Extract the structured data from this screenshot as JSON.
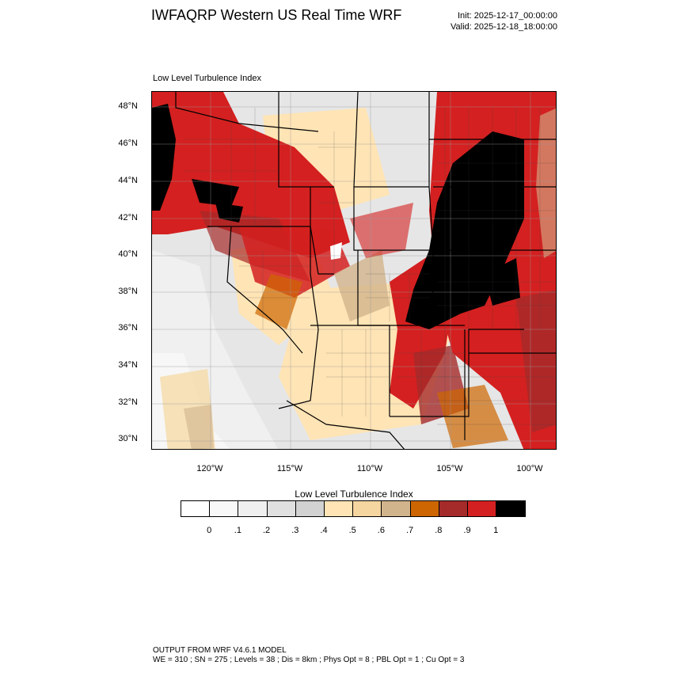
{
  "header": {
    "title": "IWFAQRP Western US Real Time WRF",
    "init": "Init: 2025-12-17_00:00:00",
    "valid": "Valid: 2025-12-18_18:00:00"
  },
  "field_label": "Low Level Turbulence Index",
  "map": {
    "latitude_labels": [
      "48°N",
      "46°N",
      "44°N",
      "42°N",
      "40°N",
      "38°N",
      "36°N",
      "34°N",
      "32°N",
      "30°N"
    ],
    "longitude_labels": [
      "120°W",
      "115°W",
      "110°W",
      "105°W",
      "100°W"
    ],
    "extent": {
      "lon_min": -123.7,
      "lon_max": -98.3,
      "lat_min": 29.4,
      "lat_max": 48.7
    }
  },
  "colorbar": {
    "title": "Low Level Turbulence Index",
    "tick_labels": [
      "0",
      ".1",
      ".2",
      ".3",
      ".4",
      ".5",
      ".6",
      ".7",
      ".8",
      ".9",
      "1"
    ],
    "colors": [
      "#ffffff",
      "#f8f8f8",
      "#efefef",
      "#e0e0e0",
      "#d2d2d2",
      "#ffe4b5",
      "#f5d5a0",
      "#d2b48c",
      "#cd6600",
      "#a52a2a",
      "#d42020",
      "#000000"
    ]
  },
  "footer": {
    "line1": "OUTPUT FROM WRF V4.6.1 MODEL",
    "line2": "WE = 310 ; SN = 275 ; Levels = 38 ; Dis = 8km ; Phys Opt = 8 ; PBL Opt = 1 ; Cu Opt = 3"
  }
}
